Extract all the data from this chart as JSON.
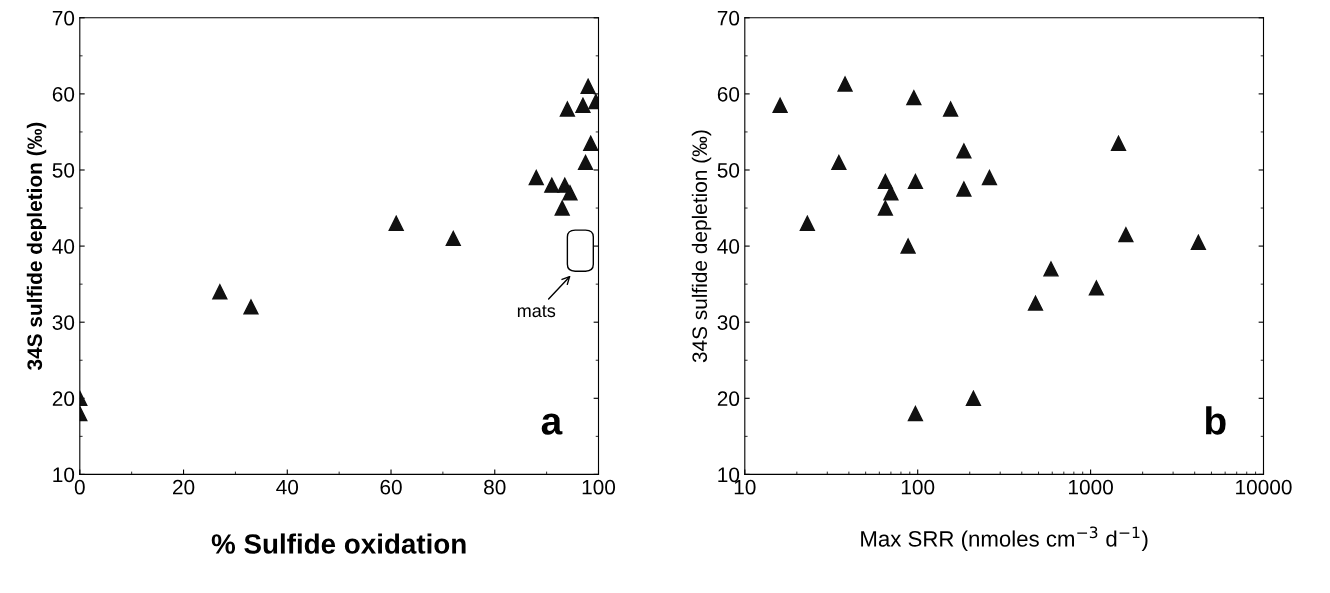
{
  "chart_data": [
    {
      "type": "scatter",
      "xlabel": "% Sulfide oxidation",
      "ylabel": "34S sulfide depletion (‰)",
      "marker": "triangle",
      "grid": false,
      "x": [
        0,
        0,
        27,
        33,
        61,
        72,
        88,
        91,
        93,
        93.5,
        94.5,
        94,
        97,
        98,
        99.5,
        98.5,
        97.5
      ],
      "series": [
        {
          "color": "#111111",
          "values": [
            20,
            18,
            34,
            32,
            43,
            41,
            49,
            48,
            45,
            48,
            47,
            58,
            58.5,
            61,
            59,
            53.5,
            51
          ]
        }
      ],
      "xlim": [
        0,
        100
      ],
      "xticks": [
        0,
        20,
        40,
        60,
        80,
        100
      ],
      "ylim": [
        10,
        70
      ],
      "yticks": [
        10,
        20,
        30,
        40,
        50,
        60,
        70
      ],
      "annotations": [
        "mats",
        "a"
      ]
    },
    {
      "type": "scatter",
      "xlabel": "Max SRR (nmoles cm$^{−3}$ d$^{−1}$)",
      "ylabel": "34S sulfide depletion (‰)",
      "marker": "triangle",
      "grid": false,
      "log": "x",
      "x": [
        16,
        38,
        35,
        23,
        65,
        70,
        65,
        95,
        97,
        88,
        97,
        155,
        185,
        185,
        260,
        210,
        480,
        590,
        1080,
        1450,
        1600,
        4200
      ],
      "series": [
        {
          "color": "#111111",
          "values": [
            58.5,
            61.3,
            51,
            43,
            48.5,
            47,
            45,
            59.5,
            48.5,
            40,
            18,
            58,
            52.5,
            47.5,
            49,
            20,
            32.5,
            37,
            34.5,
            53.5,
            41.5,
            40.5
          ]
        }
      ],
      "xlim": [
        10,
        10000
      ],
      "xticks": [
        10,
        100,
        1000,
        10000
      ],
      "ylim": [
        10,
        70
      ],
      "yticks": [
        10,
        20,
        30,
        40,
        50,
        60,
        70
      ],
      "annotations": [
        "b"
      ]
    }
  ]
}
